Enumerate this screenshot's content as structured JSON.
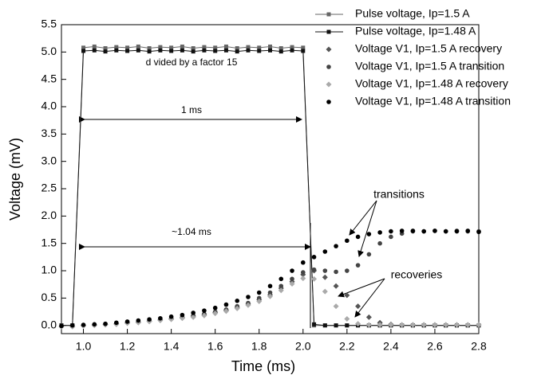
{
  "chart_data": {
    "type": "scatter",
    "xlabel": "Time (ms)",
    "ylabel": "Voltage (mV)",
    "xlim": [
      0.9,
      2.8
    ],
    "ylim": [
      -0.15,
      5.5
    ],
    "xticks": [
      {
        "value": 1,
        "label": "1.0"
      },
      {
        "value": 1.2,
        "label": "1.2"
      },
      {
        "value": 1.4,
        "label": "1.4"
      },
      {
        "value": 1.6,
        "label": "1.6"
      },
      {
        "value": 1.8,
        "label": "1.8"
      },
      {
        "value": 2,
        "label": "2.0"
      },
      {
        "value": 2.2,
        "label": "2.2"
      },
      {
        "value": 2.4,
        "label": "2.4"
      },
      {
        "value": 2.6,
        "label": "2.6"
      },
      {
        "value": 2.8,
        "label": "2.8"
      }
    ],
    "yticks": [
      {
        "value": 0,
        "label": "0.0"
      },
      0.5,
      {
        "value": 1,
        "label": "1.0"
      },
      1.5,
      {
        "value": 2,
        "label": "2.0"
      },
      2.5,
      {
        "value": 3,
        "label": "3.0"
      },
      3.5,
      {
        "value": 4,
        "label": "4.0"
      },
      4.5,
      {
        "value": 5,
        "label": "5.0"
      },
      5.5
    ],
    "annotations": [
      "d vided by a factor 15",
      "1 ms",
      "~1.04 ms",
      "transitions",
      "recoveries"
    ],
    "x": [
      0.9,
      0.95,
      1.0,
      1.05,
      1.1,
      1.15,
      1.2,
      1.25,
      1.3,
      1.35,
      1.4,
      1.45,
      1.5,
      1.55,
      1.6,
      1.65,
      1.7,
      1.75,
      1.8,
      1.85,
      1.9,
      1.95,
      2.0,
      2.05,
      2.1,
      2.15,
      2.2,
      2.25,
      2.3,
      2.35,
      2.4,
      2.45,
      2.5,
      2.55,
      2.6,
      2.65,
      2.7,
      2.75,
      2.8
    ],
    "series": [
      {
        "name": "Pulse voltage, Ip=1.5 A",
        "color": "#666666",
        "marker": "square",
        "line": true,
        "values": [
          0,
          0,
          5.08,
          5.1,
          5.07,
          5.09,
          5.08,
          5.1,
          5.07,
          5.09,
          5.08,
          5.1,
          5.07,
          5.09,
          5.08,
          5.1,
          5.07,
          5.09,
          5.08,
          5.1,
          5.07,
          5.09,
          5.08,
          0,
          0,
          0,
          0,
          0,
          0,
          0,
          0,
          0,
          0,
          0,
          0,
          0,
          0,
          0,
          0
        ]
      },
      {
        "name": "Pulse voltage, Ip=1.48 A",
        "color": "#111111",
        "marker": "square",
        "line": true,
        "values": [
          0,
          0,
          5.02,
          5.03,
          5.01,
          5.03,
          5.02,
          5.03,
          5.01,
          5.03,
          5.02,
          5.03,
          5.01,
          5.03,
          5.02,
          5.03,
          5.01,
          5.03,
          5.02,
          5.03,
          5.01,
          5.03,
          5.02,
          0.02,
          0,
          0,
          0,
          0,
          0,
          0,
          0,
          0,
          0,
          0,
          0,
          0,
          0,
          0,
          0
        ]
      },
      {
        "name": "Voltage V1, Ip=1.5 A recovery",
        "color": "#555555",
        "marker": "diamond",
        "values": [
          -0.02,
          -0.02,
          0,
          0.01,
          0.02,
          0.03,
          0.05,
          0.06,
          0.08,
          0.1,
          0.12,
          0.14,
          0.17,
          0.2,
          0.24,
          0.28,
          0.33,
          0.39,
          0.47,
          0.56,
          0.68,
          0.8,
          0.93,
          1.0,
          0.88,
          0.72,
          0.55,
          0.35,
          0.15,
          0.05,
          0.02,
          0.01,
          0.01,
          0.01,
          0.01,
          0.01,
          0.01,
          0.01,
          0.01
        ]
      },
      {
        "name": "Voltage V1, Ip=1.5 A transition",
        "color": "#444444",
        "marker": "circle",
        "values": [
          -0.01,
          -0.01,
          0,
          0.01,
          0.02,
          0.04,
          0.05,
          0.07,
          0.09,
          0.11,
          0.13,
          0.15,
          0.18,
          0.21,
          0.25,
          0.29,
          0.35,
          0.41,
          0.5,
          0.6,
          0.72,
          0.85,
          0.97,
          1.02,
          1.0,
          0.98,
          1.0,
          1.1,
          1.3,
          1.5,
          1.62,
          1.68,
          1.72,
          1.72,
          1.73,
          1.72,
          1.73,
          1.72,
          1.72
        ]
      },
      {
        "name": "Voltage V1, Ip=1.48 A recovery",
        "color": "#aaaaaa",
        "marker": "diamond",
        "values": [
          -0.02,
          -0.02,
          -0.01,
          0,
          0.01,
          0.02,
          0.04,
          0.05,
          0.07,
          0.09,
          0.11,
          0.13,
          0.15,
          0.18,
          0.22,
          0.26,
          0.31,
          0.37,
          0.44,
          0.53,
          0.64,
          0.76,
          0.86,
          0.85,
          0.62,
          0.35,
          0.12,
          0.03,
          0.01,
          0.01,
          0.01,
          0.01,
          0.01,
          0.01,
          0.01,
          0.01,
          0.01,
          0.01,
          0.01
        ]
      },
      {
        "name": "Voltage V1, Ip=1.48 A transition",
        "color": "#000000",
        "marker": "circle",
        "values": [
          -0.01,
          0,
          0.01,
          0.02,
          0.03,
          0.05,
          0.07,
          0.09,
          0.11,
          0.13,
          0.16,
          0.19,
          0.23,
          0.27,
          0.32,
          0.38,
          0.45,
          0.52,
          0.6,
          0.72,
          0.85,
          1.0,
          1.15,
          1.25,
          1.35,
          1.45,
          1.55,
          1.62,
          1.67,
          1.7,
          1.72,
          1.73,
          1.73,
          1.72,
          1.73,
          1.72,
          1.72,
          1.73,
          1.71
        ]
      }
    ]
  }
}
